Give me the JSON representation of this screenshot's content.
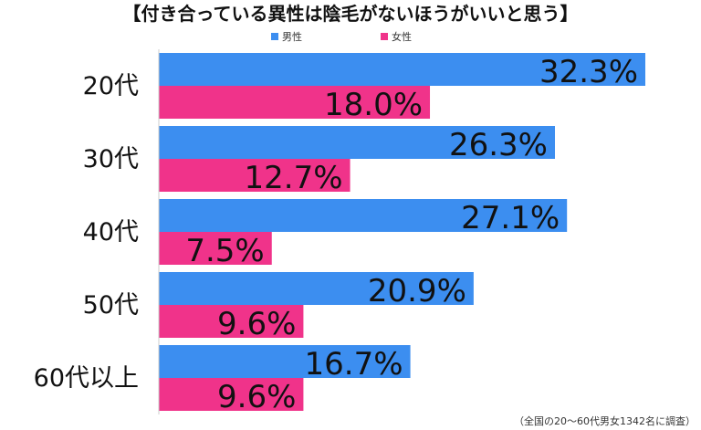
{
  "chart_data": {
    "type": "bar",
    "orientation": "horizontal",
    "title": "【付き合っている異性は陰毛がないほうがいいと思う】",
    "categories": [
      "20代",
      "30代",
      "40代",
      "50代",
      "60代以上"
    ],
    "series": [
      {
        "name": "男性",
        "color": "#3c8ef0",
        "values": [
          32.3,
          26.3,
          27.1,
          20.9,
          16.7
        ]
      },
      {
        "name": "女性",
        "color": "#f0338a",
        "values": [
          18.0,
          12.7,
          7.5,
          9.6,
          9.6
        ]
      }
    ],
    "value_labels": {
      "男性": [
        "32.3%",
        "26.3%",
        "27.1%",
        "20.9%",
        "16.7%"
      ],
      "女性": [
        "18.0%",
        "12.7%",
        "7.5%",
        "9.6%",
        "9.6%"
      ]
    },
    "xlim": [
      0,
      32.3
    ],
    "legend": {
      "position": "top"
    },
    "footnote": "（全国の20〜60代男女1342名に調査）",
    "grid": false
  }
}
